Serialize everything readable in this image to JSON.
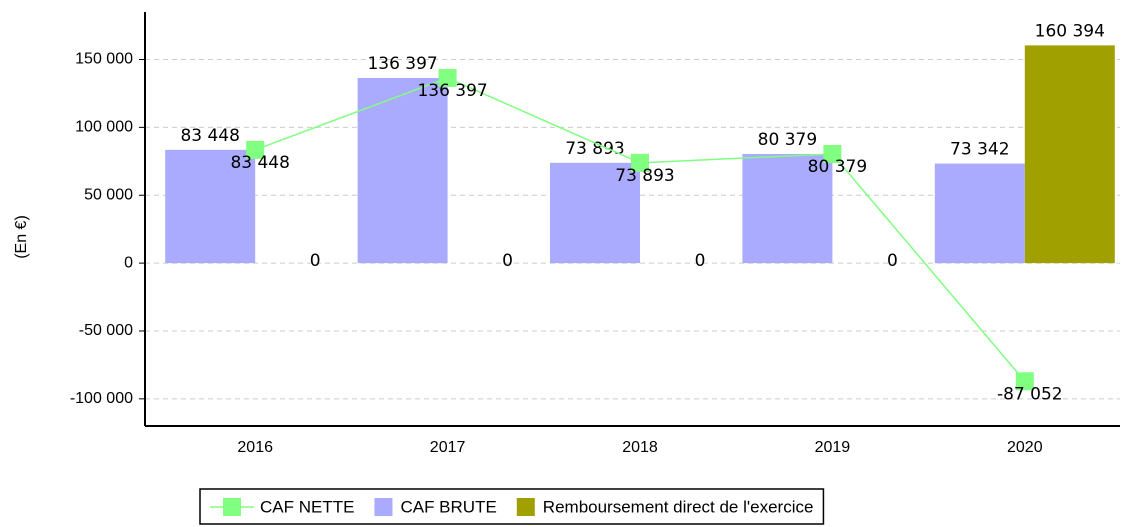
{
  "chart_data": {
    "type": "bar",
    "categories": [
      "2016",
      "2017",
      "2018",
      "2019",
      "2020"
    ],
    "ylabel": "(En €)",
    "ylim": [
      -120000,
      185000
    ],
    "yticks": [
      {
        "value": -100000,
        "label": "-100 000"
      },
      {
        "value": -50000,
        "label": "-50 000"
      },
      0,
      {
        "value": 50000,
        "label": "50 000"
      },
      {
        "value": 100000,
        "label": "100 000"
      },
      {
        "value": 150000,
        "label": "150 000"
      }
    ],
    "grid": true,
    "legend": "bottom",
    "series": [
      {
        "name": "CAF NETTE",
        "type": "line",
        "color": "#80ff80",
        "values": [
          83448,
          136397,
          73893,
          80379,
          -87052
        ],
        "value_labels": [
          "83 448",
          "136 397",
          "73 893",
          "80 379",
          "-87 052"
        ]
      },
      {
        "name": "CAF BRUTE",
        "type": "bar",
        "color": "#aaaaff",
        "values": [
          83448,
          136397,
          73893,
          80379,
          73342
        ],
        "value_labels": [
          "83 448",
          "136 397",
          "73 893",
          "80 379",
          "73 342"
        ]
      },
      {
        "name": "Remboursement direct de l'exercice",
        "type": "bar",
        "color": "#a0a000",
        "values": [
          0,
          0,
          0,
          0,
          160394
        ],
        "value_labels": [
          "0",
          "0",
          "0",
          "0",
          "160 394"
        ]
      }
    ]
  }
}
